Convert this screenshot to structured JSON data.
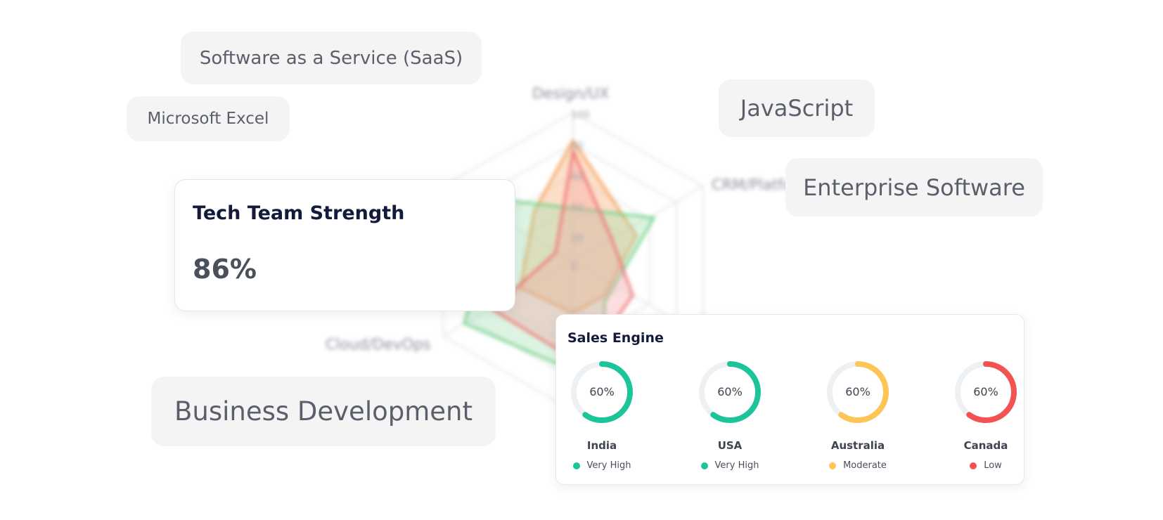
{
  "background_radar": {
    "axes": [
      "Design/UX",
      "CRM/Platforms",
      "Cloud/DevOps"
    ],
    "ticks": [
      "100",
      "80",
      "60",
      "40",
      "20",
      "0"
    ]
  },
  "skill_chips": {
    "saas": "Software as a Service (SaaS)",
    "excel": "Microsoft Excel",
    "javascript": "JavaScript",
    "enterprise": "Enterprise Software",
    "business": "Business Development"
  },
  "tech_card": {
    "title": "Tech Team Strength",
    "value": "86%"
  },
  "sales_card": {
    "title": "Sales Engine",
    "gauges": [
      {
        "value": "60%",
        "percent": 60,
        "country": "India",
        "level": "Very High",
        "color": "#1dc49a"
      },
      {
        "value": "60%",
        "percent": 60,
        "country": "USA",
        "level": "Very High",
        "color": "#1dc49a"
      },
      {
        "value": "60%",
        "percent": 60,
        "country": "Australia",
        "level": "Moderate",
        "color": "#fcc555"
      },
      {
        "value": "60%",
        "percent": 60,
        "country": "Canada",
        "level": "Low",
        "color": "#f25252"
      }
    ]
  }
}
